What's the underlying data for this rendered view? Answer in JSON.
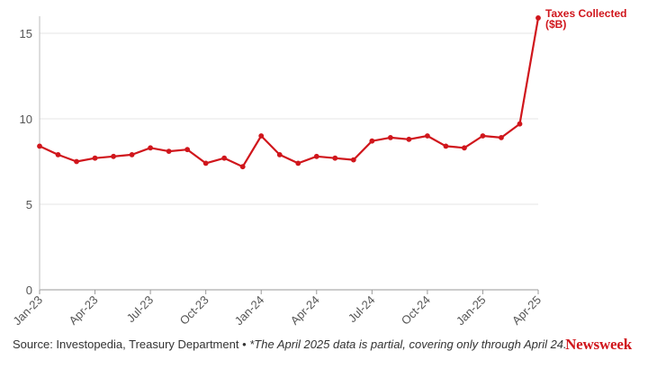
{
  "chart_data": {
    "type": "line",
    "title": "",
    "xlabel": "",
    "ylabel": "",
    "ylim": [
      0,
      16
    ],
    "y_ticks": [
      0,
      5,
      10,
      15
    ],
    "grid": "horizontal",
    "x": [
      "Jan-23",
      "Feb-23",
      "Mar-23",
      "Apr-23",
      "May-23",
      "Jun-23",
      "Jul-23",
      "Aug-23",
      "Sep-23",
      "Oct-23",
      "Nov-23",
      "Dec-23",
      "Jan-24",
      "Feb-24",
      "Mar-24",
      "Apr-24",
      "May-24",
      "Jun-24",
      "Jul-24",
      "Aug-24",
      "Sep-24",
      "Oct-24",
      "Nov-24",
      "Dec-24",
      "Jan-25",
      "Feb-25",
      "Mar-25",
      "Apr-25"
    ],
    "x_tick_labels": [
      "Jan-23",
      "Apr-23",
      "Jul-23",
      "Oct-23",
      "Jan-24",
      "Apr-24",
      "Jul-24",
      "Oct-24",
      "Jan-25",
      "Apr-25"
    ],
    "series": [
      {
        "name": "Taxes Collected ($B)",
        "color": "#d0161c",
        "values": [
          8.4,
          7.9,
          7.5,
          7.7,
          7.8,
          7.9,
          8.3,
          8.1,
          8.2,
          7.4,
          7.7,
          7.2,
          9.0,
          7.9,
          7.4,
          7.8,
          7.7,
          7.6,
          8.7,
          8.9,
          8.8,
          9.0,
          8.4,
          8.3,
          9.0,
          8.9,
          9.7,
          15.9
        ]
      }
    ],
    "series_label_lines": [
      "Taxes Collected",
      "($B)"
    ]
  },
  "footer": {
    "source": "Source: Investopedia, Treasury Department • ",
    "note": "*The April 2025 data is partial, covering only through April 24."
  },
  "brand": {
    "logo_text": "Newsweek",
    "accent_color": "#d0161c"
  }
}
